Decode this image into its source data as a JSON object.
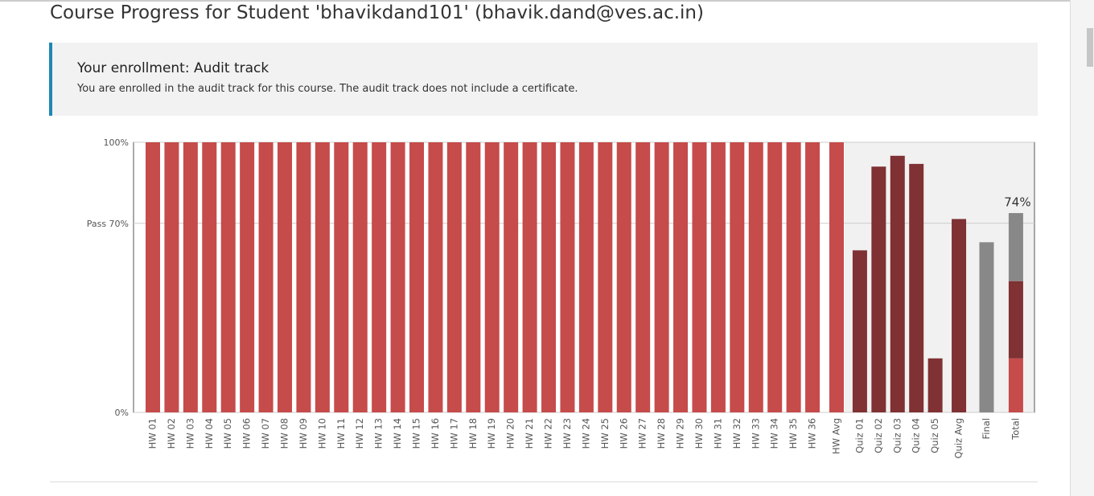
{
  "page": {
    "title": "Course Progress for Student 'bhavikdand101' (bhavik.dand@ves.ac.in)",
    "enrollment": {
      "heading": "Your enrollment: Audit track",
      "message": "You are enrolled in the audit track for this course. The audit track does not include a certificate."
    }
  },
  "chart_data": {
    "type": "bar",
    "stacked": true,
    "categories": [
      "HW 01",
      "HW 02",
      "HW 03",
      "HW 04",
      "HW 05",
      "HW 06",
      "HW 07",
      "HW 08",
      "HW 09",
      "HW 10",
      "HW 11",
      "HW 12",
      "HW 13",
      "HW 14",
      "HW 15",
      "HW 16",
      "HW 17",
      "HW 18",
      "HW 19",
      "HW 20",
      "HW 21",
      "HW 22",
      "HW 23",
      "HW 24",
      "HW 25",
      "HW 26",
      "HW 27",
      "HW 28",
      "HW 29",
      "HW 30",
      "HW 31",
      "HW 32",
      "HW 33",
      "HW 34",
      "HW 35",
      "HW 36",
      "HW Avg",
      "Quiz 01",
      "Quiz 02",
      "Quiz 03",
      "Quiz 04",
      "Quiz 05",
      "Quiz Avg",
      "Final",
      "Total"
    ],
    "series": [
      {
        "color": "#c64b4b",
        "values": [
          100,
          100,
          100,
          100,
          100,
          100,
          100,
          100,
          100,
          100,
          100,
          100,
          100,
          100,
          100,
          100,
          100,
          100,
          100,
          100,
          100,
          100,
          100,
          100,
          100,
          100,
          100,
          100,
          100,
          100,
          100,
          100,
          100,
          100,
          100,
          100,
          100,
          null,
          null,
          null,
          null,
          null,
          null,
          null,
          20
        ]
      },
      {
        "color": "#7f3133",
        "values": [
          null,
          null,
          null,
          null,
          null,
          null,
          null,
          null,
          null,
          null,
          null,
          null,
          null,
          null,
          null,
          null,
          null,
          null,
          null,
          null,
          null,
          null,
          null,
          null,
          null,
          null,
          null,
          null,
          null,
          null,
          null,
          null,
          null,
          null,
          null,
          null,
          null,
          60,
          91,
          95,
          92,
          20,
          71.6,
          null,
          28.6
        ]
      },
      {
        "color": "#888888",
        "values": [
          null,
          null,
          null,
          null,
          null,
          null,
          null,
          null,
          null,
          null,
          null,
          null,
          null,
          null,
          null,
          null,
          null,
          null,
          null,
          null,
          null,
          null,
          null,
          null,
          null,
          null,
          null,
          null,
          null,
          null,
          null,
          null,
          null,
          null,
          null,
          null,
          null,
          null,
          null,
          null,
          null,
          null,
          null,
          63,
          25.2
        ]
      }
    ],
    "total_label": {
      "value": 74,
      "label": "74%"
    },
    "ylim": [
      0,
      100
    ],
    "yticks": [
      {
        "value": 0,
        "label": "0%"
      },
      {
        "value": 70,
        "label": "Pass 70%"
      },
      {
        "value": 100,
        "label": "100%"
      }
    ]
  }
}
